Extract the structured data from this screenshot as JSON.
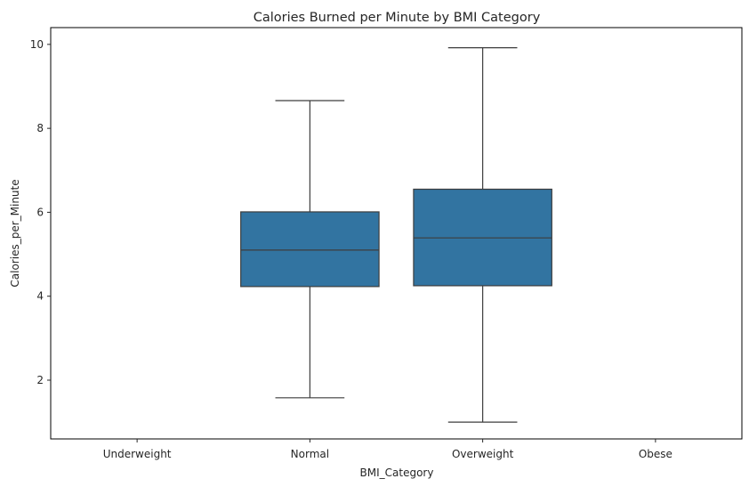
{
  "chart_data": {
    "type": "box",
    "title": "Calories Burned per Minute by BMI Category",
    "xlabel": "BMI_Category",
    "ylabel": "Calories_per_Minute",
    "categories": [
      "Underweight",
      "Normal",
      "Overweight",
      "Obese"
    ],
    "ylim": [
      0.6,
      10.4
    ],
    "yticks": [
      2,
      4,
      6,
      8,
      10
    ],
    "grid": false,
    "box_color": "#3274a1",
    "line_color": "#3d3d3d",
    "boxes": [
      null,
      {
        "whisker_low": 1.58,
        "q1": 4.23,
        "median": 5.1,
        "q3": 6.01,
        "whisker_high": 8.66
      },
      {
        "whisker_low": 1.0,
        "q1": 4.25,
        "median": 5.39,
        "q3": 6.55,
        "whisker_high": 9.92
      },
      null
    ]
  }
}
